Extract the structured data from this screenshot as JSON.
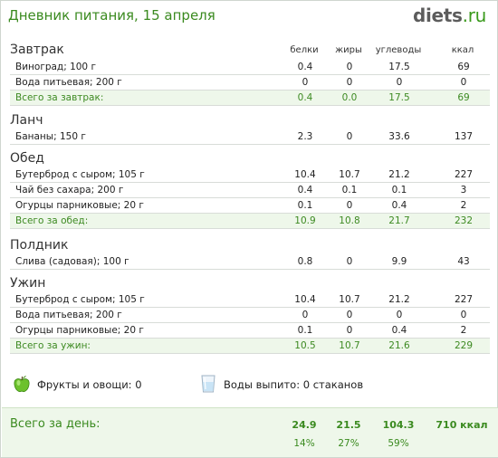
{
  "header": {
    "title": "Дневник питания, 15 апреля",
    "logo_main": "diets",
    "logo_domain": ".ru"
  },
  "columns": {
    "protein": "белки",
    "fat": "жиры",
    "carbs": "углеводы",
    "kcal": "ккал"
  },
  "meals": [
    {
      "name": "Завтрак",
      "items": [
        {
          "name": "Виноград; 100 г",
          "protein": "0.4",
          "fat": "0",
          "carbs": "17.5",
          "kcal": "69"
        },
        {
          "name": "Вода питьевая; 200 г",
          "protein": "0",
          "fat": "0",
          "carbs": "0",
          "kcal": "0"
        }
      ],
      "total": {
        "label": "Всего за завтрак:",
        "protein": "0.4",
        "fat": "0.0",
        "carbs": "17.5",
        "kcal": "69"
      }
    },
    {
      "name": "Ланч",
      "items": [
        {
          "name": "Бананы; 150 г",
          "protein": "2.3",
          "fat": "0",
          "carbs": "33.6",
          "kcal": "137"
        }
      ]
    },
    {
      "name": "Обед",
      "items": [
        {
          "name": "Бутерброд с сыром; 105 г",
          "protein": "10.4",
          "fat": "10.7",
          "carbs": "21.2",
          "kcal": "227"
        },
        {
          "name": "Чай без сахара; 200 г",
          "protein": "0.4",
          "fat": "0.1",
          "carbs": "0.1",
          "kcal": "3"
        },
        {
          "name": "Огурцы парниковые; 20 г",
          "protein": "0.1",
          "fat": "0",
          "carbs": "0.4",
          "kcal": "2"
        }
      ],
      "total": {
        "label": "Всего за обед:",
        "protein": "10.9",
        "fat": "10.8",
        "carbs": "21.7",
        "kcal": "232"
      }
    },
    {
      "name": "Полдник",
      "items": [
        {
          "name": "Слива (садовая); 100 г",
          "protein": "0.8",
          "fat": "0",
          "carbs": "9.9",
          "kcal": "43"
        }
      ]
    },
    {
      "name": "Ужин",
      "items": [
        {
          "name": "Бутерброд с сыром; 105 г",
          "protein": "10.4",
          "fat": "10.7",
          "carbs": "21.2",
          "kcal": "227"
        },
        {
          "name": "Вода питьевая; 200 г",
          "protein": "0",
          "fat": "0",
          "carbs": "0",
          "kcal": "0"
        },
        {
          "name": "Огурцы парниковые; 20 г",
          "protein": "0.1",
          "fat": "0",
          "carbs": "0.4",
          "kcal": "2"
        }
      ],
      "total": {
        "label": "Всего за ужин:",
        "protein": "10.5",
        "fat": "10.7",
        "carbs": "21.6",
        "kcal": "229"
      }
    }
  ],
  "extras": {
    "fruit_label": "Фрукты и овощи: 0",
    "water_label": "Воды выпито: 0 стаканов"
  },
  "day_total": {
    "label": "Всего за день:",
    "protein": "24.9",
    "fat": "21.5",
    "carbs": "104.3",
    "kcal": "710 ккал",
    "protein_pct": "14%",
    "fat_pct": "27%",
    "carbs_pct": "59%"
  },
  "colors": {
    "accent_green": "#3a8a1f",
    "total_row_bg": "#eef7ea"
  }
}
